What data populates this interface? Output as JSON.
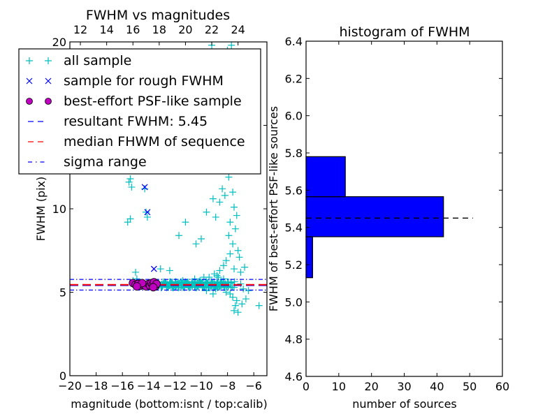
{
  "chart_data": [
    {
      "type": "scatter",
      "title": "FWHM vs magnitudes",
      "xlabel": "magnitude (bottom:isnt / top:calib)",
      "ylabel": "FWHM (pix)",
      "xlim": [
        -20,
        -5
      ],
      "ylim": [
        0,
        20
      ],
      "xticks": [
        "−20",
        "−18",
        "−16",
        "−14",
        "−12",
        "−10",
        "−8",
        "−6"
      ],
      "xtick_values": [
        -20,
        -18,
        -16,
        -14,
        -12,
        -10,
        -8,
        -6
      ],
      "yticks": [
        "0",
        "5",
        "10",
        "15",
        "20"
      ],
      "ytick_values": [
        0,
        5,
        10,
        15,
        20
      ],
      "top_xticks": [
        "12",
        "14",
        "16",
        "18",
        "20",
        "22",
        "24"
      ],
      "top_xtick_values": [
        -19.2,
        -17.2,
        -15.2,
        -13.2,
        -11.2,
        -9.2,
        -7.2
      ],
      "legend_position": "upper-left",
      "legend": [
        {
          "label": "all sample",
          "marker": "plus",
          "color": "#00bfbf"
        },
        {
          "label": "sample for rough FWHM",
          "marker": "x",
          "color": "#0000ff"
        },
        {
          "label": "best-effort PSF-like sample",
          "marker": "circle",
          "color": "#bf00bf"
        },
        {
          "label": "resultant FWHM: 5.45",
          "marker": "dashed",
          "color": "#0000ff"
        },
        {
          "label": "median FHWM of sequence",
          "marker": "dashed",
          "color": "#ff0000"
        },
        {
          "label": "sigma range",
          "marker": "dashdot",
          "color": "#0000ff"
        }
      ],
      "resultant_fwhm": 5.45,
      "median_fwhm": 5.45,
      "sigma_range": [
        5.13,
        5.77
      ],
      "series": [
        {
          "name": "all sample",
          "color": "#00bfbf",
          "points": [
            [
              -15.6,
              9.2
            ],
            [
              -15.4,
              9.4
            ],
            [
              -15.5,
              11.6
            ],
            [
              -15.4,
              11.8
            ],
            [
              -15.3,
              11.3
            ],
            [
              -15.0,
              6.2
            ],
            [
              -14.9,
              5.8
            ],
            [
              -14.2,
              9.8
            ],
            [
              -14.1,
              9.5
            ],
            [
              -14.3,
              11.2
            ],
            [
              -13.9,
              12.6
            ],
            [
              -13.1,
              6.4
            ],
            [
              -12.4,
              6.3
            ],
            [
              -11.7,
              8.4
            ],
            [
              -11.2,
              9.2
            ],
            [
              -10.4,
              7.9
            ],
            [
              -10.0,
              8.2
            ],
            [
              -9.6,
              9.8
            ],
            [
              -9.1,
              10.6
            ],
            [
              -8.9,
              9.5
            ],
            [
              -8.6,
              10.4
            ],
            [
              -8.4,
              11.2
            ],
            [
              -8.2,
              10.8
            ],
            [
              -8.0,
              12.4
            ],
            [
              -7.9,
              11.9
            ],
            [
              -7.8,
              12.5
            ],
            [
              -7.7,
              13.1
            ],
            [
              -8.1,
              13.5
            ],
            [
              -8.3,
              14.6
            ],
            [
              -8.5,
              15.1
            ],
            [
              -7.9,
              14.9
            ],
            [
              -7.7,
              15.4
            ],
            [
              -8.6,
              14.2
            ],
            [
              -9.0,
              14.1
            ],
            [
              -9.3,
              13.3
            ],
            [
              -9.5,
              13.8
            ],
            [
              -7.6,
              11.0
            ],
            [
              -7.5,
              10.1
            ],
            [
              -7.3,
              9.6
            ],
            [
              -7.8,
              9.2
            ],
            [
              -7.4,
              8.8
            ],
            [
              -7.9,
              8.4
            ],
            [
              -7.6,
              7.9
            ],
            [
              -7.2,
              7.5
            ],
            [
              -7.1,
              7.1
            ],
            [
              -7.8,
              7.3
            ],
            [
              -8.1,
              6.9
            ],
            [
              -8.3,
              6.6
            ],
            [
              -7.5,
              6.4
            ],
            [
              -7.0,
              6.2
            ],
            [
              -6.7,
              6.5
            ],
            [
              -8.6,
              6.3
            ],
            [
              -9.0,
              6.1
            ],
            [
              -9.4,
              5.9
            ],
            [
              -9.8,
              5.9
            ],
            [
              -10.1,
              5.7
            ],
            [
              -10.5,
              5.8
            ],
            [
              -11.0,
              5.6
            ],
            [
              -11.4,
              5.7
            ],
            [
              -11.8,
              5.5
            ],
            [
              -12.2,
              5.6
            ],
            [
              -12.6,
              5.5
            ],
            [
              -13.0,
              5.4
            ],
            [
              -12.9,
              5.6
            ],
            [
              -12.5,
              5.4
            ],
            [
              -12.1,
              5.3
            ],
            [
              -11.7,
              5.4
            ],
            [
              -11.3,
              5.3
            ],
            [
              -10.9,
              5.4
            ],
            [
              -10.5,
              5.3
            ],
            [
              -10.1,
              5.5
            ],
            [
              -9.7,
              5.3
            ],
            [
              -9.3,
              5.4
            ],
            [
              -8.9,
              5.2
            ],
            [
              -8.5,
              5.6
            ],
            [
              -8.1,
              5.0
            ],
            [
              -7.8,
              4.9
            ],
            [
              -7.6,
              4.7
            ],
            [
              -7.3,
              4.5
            ],
            [
              -7.4,
              4.2
            ],
            [
              -7.5,
              3.9
            ],
            [
              -7.2,
              3.8
            ],
            [
              -6.9,
              4.3
            ],
            [
              -6.6,
              4.6
            ],
            [
              -6.4,
              5.1
            ],
            [
              -5.6,
              4.2
            ],
            [
              -6.8,
              5.2
            ],
            [
              -7.0,
              5.5
            ],
            [
              -8.3,
              5.8
            ],
            [
              -8.7,
              5.9
            ],
            [
              -9.1,
              4.9
            ],
            [
              -9.6,
              5.1
            ],
            [
              -8.8,
              6.0
            ],
            [
              -9.9,
              5.6
            ],
            [
              -10.3,
              5.6
            ],
            [
              -10.7,
              5.5
            ],
            [
              -11.1,
              5.5
            ],
            [
              -11.5,
              5.5
            ],
            [
              -11.9,
              5.4
            ],
            [
              -12.3,
              5.4
            ],
            [
              -12.7,
              5.5
            ],
            [
              -8.0,
              16.2
            ],
            [
              -7.9,
              17.5
            ],
            [
              -8.2,
              18.6
            ],
            [
              -7.6,
              18.8
            ],
            [
              -8.0,
              19.5
            ],
            [
              -7.7,
              19.8
            ],
            [
              -9.2,
              19.8
            ],
            [
              -15.2,
              5.7
            ]
          ]
        },
        {
          "name": "sample for rough FWHM",
          "color": "#0000ff",
          "points": [
            [
              -14.3,
              11.3
            ],
            [
              -14.1,
              9.8
            ],
            [
              -13.6,
              6.4
            ]
          ]
        },
        {
          "name": "best-effort PSF-like sample",
          "color": "#bf00bf",
          "points": [
            [
              -15.2,
              5.55
            ],
            [
              -15.0,
              5.45
            ],
            [
              -14.8,
              5.5
            ],
            [
              -14.6,
              5.4
            ],
            [
              -14.4,
              5.45
            ],
            [
              -14.2,
              5.35
            ],
            [
              -14.0,
              5.5
            ],
            [
              -13.9,
              5.4
            ],
            [
              -13.8,
              5.55
            ],
            [
              -13.7,
              5.45
            ],
            [
              -13.6,
              5.6
            ],
            [
              -13.5,
              5.35
            ],
            [
              -13.4,
              5.5
            ],
            [
              -14.5,
              5.55
            ],
            [
              -14.9,
              5.35
            ],
            [
              -13.65,
              5.3
            ]
          ]
        }
      ]
    },
    {
      "type": "bar",
      "orientation": "horizontal",
      "title": "histogram of FWHM",
      "xlabel": "number of sources",
      "ylabel": "FWHM of best-effort PSF-like sources",
      "xlim": [
        0,
        60
      ],
      "ylim": [
        4.6,
        6.4
      ],
      "xticks": [
        "0",
        "10",
        "20",
        "30",
        "40",
        "50",
        "60"
      ],
      "xtick_values": [
        0,
        10,
        20,
        30,
        40,
        50,
        60
      ],
      "yticks": [
        "4.6",
        "4.8",
        "5.0",
        "5.2",
        "5.4",
        "5.6",
        "5.8",
        "6.0",
        "6.2",
        "6.4"
      ],
      "ytick_values": [
        4.6,
        4.8,
        5.0,
        5.2,
        5.4,
        5.6,
        5.8,
        6.0,
        6.2,
        6.4
      ],
      "bar_color": "#0000ff",
      "bins": [
        {
          "from": 5.13,
          "to": 5.35,
          "count": 2
        },
        {
          "from": 5.35,
          "to": 5.565,
          "count": 42
        },
        {
          "from": 5.565,
          "to": 5.78,
          "count": 12
        }
      ],
      "reference_line": {
        "value": 5.45,
        "extent": 51,
        "style": "dashed",
        "color": "#000000"
      }
    }
  ]
}
